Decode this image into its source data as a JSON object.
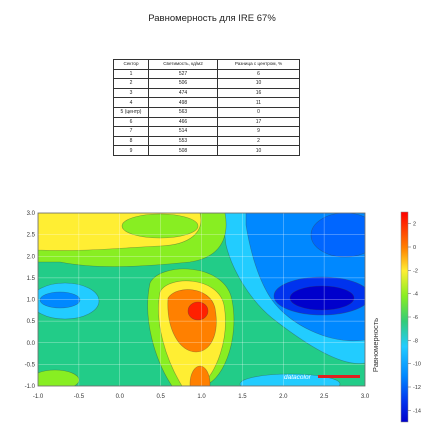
{
  "title": "Равномерность для IRE 67%",
  "table": {
    "headers": [
      "Сектор",
      "Светимость, кд/м2",
      "Разница с центром, %"
    ],
    "rows": [
      [
        "1",
        "527",
        "6"
      ],
      [
        "2",
        "506",
        "10"
      ],
      [
        "3",
        "474",
        "16"
      ],
      [
        "4",
        "498",
        "11"
      ],
      [
        "5 (центр)",
        "563",
        "0"
      ],
      [
        "6",
        "466",
        "17"
      ],
      [
        "7",
        "514",
        "9"
      ],
      [
        "8",
        "553",
        "2"
      ],
      [
        "9",
        "508",
        "10"
      ]
    ]
  },
  "chart_data": {
    "type": "heatmap",
    "title": "",
    "xlabel": "",
    "ylabel": "",
    "x_ticks": [
      "-1.0",
      "-0.5",
      "0.0",
      "0.5",
      "1.0",
      "1.5",
      "2.0",
      "2.5",
      "3.0"
    ],
    "y_ticks": [
      "3.0",
      "2.5",
      "2.0",
      "1.5",
      "1.0",
      "0.5",
      "0.0",
      "-0.5",
      "-1.0"
    ],
    "xlim": [
      -1.0,
      3.0
    ],
    "ylim": [
      -1.0,
      3.0
    ],
    "colorbar": {
      "label": "Равномерность",
      "ticks": [
        "2",
        "0",
        "-2",
        "-4",
        "-6",
        "-8",
        "-10",
        "-12",
        "-14"
      ],
      "range": [
        -15,
        3
      ]
    },
    "regions": [
      {
        "name": "peak",
        "x": 0.95,
        "y": 0.9,
        "value": 2
      },
      {
        "name": "bottom-center",
        "x": 1.0,
        "y": -0.9,
        "value": -1
      },
      {
        "name": "top-left",
        "x": -0.6,
        "y": 2.4,
        "value": -3
      },
      {
        "name": "top-center",
        "x": 0.4,
        "y": 2.7,
        "value": -5
      },
      {
        "name": "left-trough",
        "x": -0.6,
        "y": 1.0,
        "value": -10
      },
      {
        "name": "bottom-left",
        "x": -0.6,
        "y": -0.8,
        "value": -5
      },
      {
        "name": "right-low",
        "x": 2.7,
        "y": 1.1,
        "value": -15
      },
      {
        "name": "right-upper",
        "x": 2.2,
        "y": 2.5,
        "value": -14
      },
      {
        "name": "bottom-right",
        "x": 2.5,
        "y": -0.8,
        "value": -7
      }
    ],
    "grid": true
  },
  "watermark": "datacolor",
  "colors": [
    "#ff0000",
    "#ff7f00",
    "#ffff40",
    "#7fff00",
    "#3fbf7f",
    "#00bfff",
    "#0066ff",
    "#0000cc"
  ]
}
